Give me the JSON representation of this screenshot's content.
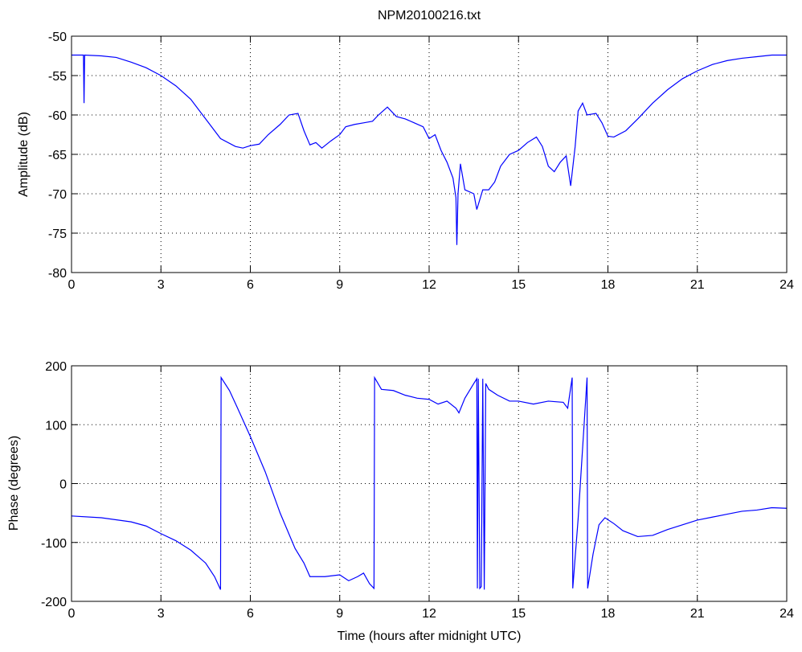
{
  "chart_data": [
    {
      "type": "line",
      "title": "NPM20100216.txt",
      "ylabel": "Amplitude (dB)",
      "color": "#0000ff",
      "grid": true,
      "xlim": [
        0,
        24
      ],
      "xticks": [
        0,
        3,
        6,
        9,
        12,
        15,
        18,
        21,
        24
      ],
      "ylim": [
        -80,
        -50
      ],
      "yticks": [
        -80,
        -75,
        -70,
        -65,
        -60,
        -55,
        -50
      ],
      "x": [
        0,
        0.4,
        0.42,
        0.44,
        1,
        1.5,
        2,
        2.5,
        3,
        3.5,
        4,
        4.5,
        5,
        5.5,
        5.75,
        6,
        6.3,
        6.6,
        7,
        7.3,
        7.6,
        7.8,
        8,
        8.2,
        8.4,
        8.7,
        9,
        9.2,
        9.5,
        9.8,
        10.1,
        10.3,
        10.6,
        10.9,
        11.2,
        11.5,
        11.8,
        12,
        12.2,
        12.4,
        12.6,
        12.8,
        12.9,
        12.93,
        12.97,
        13.05,
        13.2,
        13.5,
        13.6,
        13.8,
        14,
        14.2,
        14.4,
        14.7,
        15,
        15.3,
        15.6,
        15.8,
        16,
        16.2,
        16.4,
        16.6,
        16.75,
        16.9,
        17,
        17.15,
        17.3,
        17.6,
        17.8,
        18,
        18.2,
        18.6,
        19,
        19.5,
        20,
        20.5,
        21,
        21.5,
        22,
        22.5,
        23,
        23.5,
        24
      ],
      "values": [
        -52.4,
        -52.4,
        -58.5,
        -52.4,
        -52.5,
        -52.7,
        -53.3,
        -54,
        -55,
        -56.3,
        -58,
        -60.5,
        -63,
        -64,
        -64.2,
        -63.9,
        -63.7,
        -62.5,
        -61.2,
        -60,
        -59.8,
        -62,
        -63.8,
        -63.5,
        -64.2,
        -63.3,
        -62.5,
        -61.5,
        -61.2,
        -61,
        -60.8,
        -60,
        -59,
        -60.2,
        -60.5,
        -61,
        -61.5,
        -63,
        -62.5,
        -64.5,
        -66,
        -68,
        -70.5,
        -76.5,
        -70,
        -66.2,
        -69.5,
        -70,
        -72,
        -69.5,
        -69.5,
        -68.5,
        -66.5,
        -65,
        -64.5,
        -63.5,
        -62.8,
        -64,
        -66.5,
        -67.2,
        -66,
        -65.2,
        -69,
        -64,
        -59.5,
        -58.5,
        -60,
        -59.8,
        -61,
        -62.7,
        -62.8,
        -62,
        -60.5,
        -58.5,
        -56.8,
        -55.4,
        -54.4,
        -53.6,
        -53.1,
        -52.8,
        -52.6,
        -52.4,
        -52.4
      ]
    },
    {
      "type": "line",
      "ylabel": "Phase (degrees)",
      "xlabel": "Time (hours after midnight UTC)",
      "color": "#0000ff",
      "grid": true,
      "xlim": [
        0,
        24
      ],
      "xticks": [
        0,
        3,
        6,
        9,
        12,
        15,
        18,
        21,
        24
      ],
      "ylim": [
        -200,
        200
      ],
      "yticks": [
        -200,
        -100,
        0,
        100,
        200
      ],
      "x": [
        0,
        1,
        2,
        2.5,
        3,
        3.5,
        4,
        4.5,
        4.8,
        5,
        5.02,
        5.3,
        5.6,
        6,
        6.5,
        7,
        7.5,
        7.8,
        8,
        8.5,
        9,
        9.3,
        9.6,
        9.8,
        10,
        10.15,
        10.17,
        10.4,
        10.8,
        11.2,
        11.6,
        12,
        12.3,
        12.6,
        12.9,
        13,
        13.2,
        13.5,
        13.6,
        13.62,
        13.65,
        13.7,
        13.75,
        13.8,
        13.85,
        13.9,
        14,
        14.3,
        14.7,
        15,
        15.5,
        16,
        16.5,
        16.65,
        16.8,
        16.82,
        17,
        17.3,
        17.32,
        17.5,
        17.7,
        17.9,
        18.2,
        18.5,
        19,
        19.5,
        20,
        20.5,
        21,
        21.5,
        22,
        22.5,
        23,
        23.5,
        24
      ],
      "values": [
        -55,
        -58,
        -65,
        -72,
        -85,
        -97,
        -113,
        -135,
        -158,
        -180,
        180,
        158,
        125,
        80,
        20,
        -50,
        -110,
        -135,
        -158,
        -158,
        -155,
        -165,
        -158,
        -152,
        -170,
        -178,
        180,
        160,
        158,
        150,
        145,
        143,
        135,
        140,
        128,
        120,
        145,
        170,
        178,
        -178,
        178,
        -178,
        -175,
        178,
        -180,
        170,
        160,
        150,
        140,
        140,
        135,
        140,
        138,
        128,
        180,
        -178,
        -60,
        180,
        -178,
        -120,
        -70,
        -58,
        -68,
        -80,
        -90,
        -88,
        -78,
        -70,
        -62,
        -57,
        -52,
        -47,
        -45,
        -41,
        -42
      ]
    }
  ]
}
